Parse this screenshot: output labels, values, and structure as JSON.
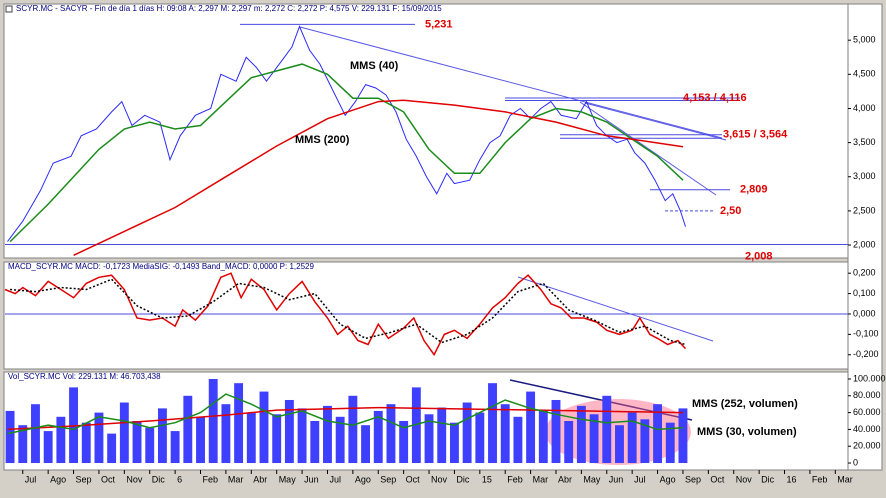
{
  "chart_data": [
    {
      "type": "line",
      "title": "SCYR.MC - SACYR - Fin de día 1 días H: 09:08 A: 2,297 M: 2,297 m: 2,272 C: 2,272 P: 4,575 V: 229.131 F: 15/09/2015",
      "xlim": [
        -0.7,
        32.5
      ],
      "ylim": [
        1.81,
        5.53
      ],
      "yticks": [
        {
          "value": 2,
          "label": "2,000"
        },
        {
          "value": 2.5,
          "label": "2,500"
        },
        {
          "value": 3,
          "label": "3,000"
        },
        {
          "value": 3.5,
          "label": "3,500"
        },
        {
          "value": 4,
          "label": "4,000"
        },
        {
          "value": 4.5,
          "label": "4,500"
        },
        {
          "value": 5,
          "label": "5,000"
        }
      ],
      "series": [
        {
          "color": "#2a2aff",
          "x": [
            -0.6,
            0,
            0.7,
            1.2,
            1.9,
            2.3,
            2.9,
            3.5,
            3.9,
            4.3,
            4.8,
            5.4,
            5.8,
            6.2,
            6.8,
            7.4,
            7.8,
            8.4,
            8.8,
            9.2,
            9.6,
            10.2,
            10.6,
            10.9,
            11.3,
            11.7,
            12.1,
            12.7,
            13.1,
            13.5,
            13.9,
            14.3,
            14.7,
            15.1,
            15.5,
            15.9,
            16.3,
            16.7,
            17.0,
            17.6,
            18.0,
            18.4,
            18.8,
            19.2,
            19.6,
            20.0,
            20.4,
            20.8,
            21.2,
            21.8,
            22.2,
            22.6,
            23.0,
            23.4,
            23.8,
            24.1,
            24.5,
            24.9,
            25.3,
            25.6,
            25.9,
            26.1
          ],
          "values": [
            2.05,
            2.35,
            2.8,
            3.2,
            3.3,
            3.6,
            3.7,
            3.95,
            4.1,
            3.75,
            3.9,
            3.8,
            3.25,
            3.6,
            3.9,
            4.0,
            4.5,
            4.4,
            4.75,
            4.6,
            4.4,
            4.7,
            4.9,
            5.2,
            4.85,
            4.65,
            4.35,
            3.9,
            4.1,
            4.35,
            4.3,
            4.2,
            3.95,
            3.55,
            3.3,
            3.0,
            2.75,
            3.05,
            2.9,
            2.95,
            3.25,
            3.5,
            3.6,
            3.9,
            4.0,
            3.85,
            4.0,
            4.1,
            3.9,
            3.85,
            4.1,
            3.75,
            3.6,
            3.5,
            3.55,
            3.35,
            3.2,
            2.95,
            2.65,
            2.75,
            2.5,
            2.27
          ]
        },
        {
          "name": "MMS (40)",
          "color": "#1a8c1a",
          "x": [
            -0.5,
            1,
            2,
            3,
            4,
            5,
            6,
            7,
            8,
            9,
            10,
            11,
            12,
            13,
            14,
            15,
            16,
            17,
            18,
            19,
            20,
            21,
            22,
            23,
            24,
            25,
            26
          ],
          "values": [
            2.05,
            2.6,
            3.0,
            3.4,
            3.7,
            3.8,
            3.7,
            3.75,
            4.1,
            4.45,
            4.55,
            4.65,
            4.5,
            4.15,
            4.15,
            3.95,
            3.4,
            3.05,
            3.05,
            3.5,
            3.85,
            4.0,
            3.95,
            3.8,
            3.55,
            3.3,
            2.95
          ]
        },
        {
          "name": "MMS (200)",
          "color": "#e00000",
          "x": [
            2,
            4,
            6,
            8,
            10,
            12,
            14,
            15,
            17,
            19,
            21,
            23,
            24,
            26
          ],
          "values": [
            1.85,
            2.2,
            2.55,
            3.0,
            3.45,
            3.85,
            4.1,
            4.12,
            4.05,
            3.95,
            3.8,
            3.6,
            3.55,
            3.44
          ]
        }
      ],
      "levels": [
        {
          "label": "5,231",
          "values": [
            5.231
          ]
        },
        {
          "label": "4,153 / 4,116",
          "values": [
            4.153,
            4.116
          ]
        },
        {
          "label": "3,615 / 3,564",
          "values": [
            3.615,
            3.564
          ]
        },
        {
          "label": "2,809",
          "values": [
            2.809
          ]
        },
        {
          "label": "2,50",
          "values": [
            2.5
          ]
        },
        {
          "label": "2,008",
          "values": [
            2.008
          ]
        }
      ]
    },
    {
      "type": "line",
      "title": "MACD_SCYR.MC MACD: -0,1723 MediaSIG: -0,1493 Band_MACD: 0,0000 P: 1,2529",
      "xlim": [
        -0.7,
        32.5
      ],
      "ylim": [
        -0.27,
        0.255
      ],
      "yticks": [
        {
          "value": 0.2,
          "label": "0,200"
        },
        {
          "value": 0.1,
          "label": "0,100"
        },
        {
          "value": 0,
          "label": "0,000"
        },
        {
          "value": -0.1,
          "label": "-0,100"
        },
        {
          "value": -0.2,
          "label": "-0,200"
        }
      ],
      "series": [
        {
          "color": "#e00000",
          "x": [
            -0.7,
            -0.3,
            0,
            0.5,
            1,
            1.5,
            2,
            2.5,
            3,
            3.5,
            4,
            4.5,
            5,
            5.5,
            6,
            6.3,
            6.8,
            7.3,
            7.8,
            8.2,
            8.6,
            9,
            9.5,
            10,
            10.5,
            11,
            11.5,
            12,
            12.4,
            12.8,
            13.2,
            13.6,
            14,
            14.4,
            15,
            15.4,
            15.8,
            16.2,
            16.6,
            17,
            17.5,
            18,
            18.5,
            19,
            19.5,
            19.9,
            20.4,
            20.8,
            21.2,
            21.6,
            22.1,
            22.6,
            23,
            23.5,
            24,
            24.3,
            24.7,
            25,
            25.4,
            25.8,
            26.1
          ],
          "values": [
            0.12,
            0.1,
            0.13,
            0.09,
            0.16,
            0.12,
            0.08,
            0.15,
            0.18,
            0.19,
            0.12,
            -0.02,
            -0.03,
            -0.02,
            -0.06,
            0.02,
            -0.03,
            0.04,
            0.18,
            0.2,
            0.08,
            0.17,
            0.12,
            0.02,
            0.1,
            0.16,
            0.06,
            -0.02,
            -0.1,
            -0.06,
            -0.13,
            -0.15,
            -0.05,
            -0.12,
            -0.07,
            -0.02,
            -0.13,
            -0.2,
            -0.1,
            -0.08,
            -0.12,
            -0.05,
            0.03,
            0.08,
            0.15,
            0.19,
            0.12,
            0.05,
            0.03,
            -0.02,
            -0.02,
            -0.04,
            -0.08,
            -0.1,
            -0.08,
            -0.02,
            -0.1,
            -0.12,
            -0.15,
            -0.13,
            -0.17
          ]
        },
        {
          "color": "#000000",
          "dashed": true,
          "x": [
            -0.5,
            0.5,
            1.5,
            2.5,
            3.5,
            4.5,
            5.5,
            6.5,
            7.5,
            8.5,
            9.5,
            10.5,
            11.5,
            12.5,
            13.5,
            14.5,
            15.5,
            16.5,
            17.5,
            18.5,
            19.5,
            20.5,
            21.5,
            22.5,
            23.5,
            24.5,
            25.5,
            26.1
          ],
          "values": [
            0.12,
            0.11,
            0.13,
            0.12,
            0.17,
            0.04,
            -0.02,
            -0.01,
            0.06,
            0.15,
            0.13,
            0.07,
            0.1,
            -0.05,
            -0.12,
            -0.09,
            -0.05,
            -0.14,
            -0.1,
            -0.02,
            0.11,
            0.15,
            0.02,
            -0.03,
            -0.09,
            -0.06,
            -0.13,
            -0.15
          ]
        }
      ]
    },
    {
      "type": "bar",
      "title": "Vol_SCYR.MC Vol: 229.131 M: 46.703,438",
      "xlim": [
        -0.7,
        32.5
      ],
      "ylim": [
        -8300,
        108300
      ],
      "yticks": [
        {
          "value": 100000,
          "label": "100.000"
        },
        {
          "value": 80000,
          "label": "80.000"
        },
        {
          "value": 60000,
          "label": "60.000"
        },
        {
          "value": 40000,
          "label": "40.000"
        },
        {
          "value": 20000,
          "label": "20.000"
        },
        0
      ],
      "xticks": [
        {
          "value": 0,
          "label": "Jul"
        },
        {
          "value": 1,
          "label": "Ago"
        },
        {
          "value": 2,
          "label": "Sep"
        },
        {
          "value": 3,
          "label": "Oct"
        },
        {
          "value": 4,
          "label": "Nov"
        },
        {
          "value": 5,
          "label": "Dic"
        },
        6,
        {
          "value": 7,
          "label": "Feb"
        },
        {
          "value": 8,
          "label": "Mar"
        },
        {
          "value": 9,
          "label": "Abr"
        },
        {
          "value": 10,
          "label": "May"
        },
        {
          "value": 11,
          "label": "Jun"
        },
        {
          "value": 12,
          "label": "Jul"
        },
        {
          "value": 13,
          "label": "Ago"
        },
        {
          "value": 14,
          "label": "Sep"
        },
        {
          "value": 15,
          "label": "Oct"
        },
        {
          "value": 16,
          "label": "Nov"
        },
        {
          "value": 17,
          "label": "Dic"
        },
        {
          "value": 18,
          "label": "15"
        },
        {
          "value": 19,
          "label": "Feb"
        },
        {
          "value": 20,
          "label": "Mar"
        },
        {
          "value": 21,
          "label": "Abr"
        },
        {
          "value": 22,
          "label": "May"
        },
        {
          "value": 23,
          "label": "Jun"
        },
        {
          "value": 24,
          "label": "Jul"
        },
        {
          "value": 25,
          "label": "Ago"
        },
        {
          "value": 26,
          "label": "Sep"
        },
        {
          "value": 27,
          "label": "Oct"
        },
        {
          "value": 28,
          "label": "Nov"
        },
        {
          "value": 29,
          "label": "Dic"
        },
        {
          "value": 30,
          "label": "16"
        },
        {
          "value": 31,
          "label": "Feb"
        },
        {
          "value": 32,
          "label": "Mar"
        }
      ],
      "x": [
        -0.5,
        0,
        0.5,
        1,
        1.5,
        2,
        2.5,
        3,
        3.5,
        4,
        4.5,
        5,
        5.5,
        6,
        6.5,
        7,
        7.5,
        8,
        8.5,
        9,
        9.5,
        10,
        10.5,
        11,
        11.5,
        12,
        12.5,
        13,
        13.5,
        14,
        14.5,
        15,
        15.5,
        16,
        16.5,
        17,
        17.5,
        18,
        18.5,
        19,
        19.5,
        20,
        20.5,
        21,
        21.5,
        22,
        22.5,
        23,
        23.5,
        24,
        24.5,
        25,
        25.5,
        26
      ],
      "values": [
        62000,
        45000,
        70000,
        38000,
        55000,
        90000,
        48000,
        60000,
        35000,
        72000,
        50000,
        42000,
        65000,
        38000,
        80000,
        55000,
        100000,
        70000,
        95000,
        60000,
        85000,
        58000,
        75000,
        65000,
        50000,
        68000,
        55000,
        80000,
        45000,
        62000,
        70000,
        50000,
        90000,
        58000,
        66000,
        48000,
        72000,
        60000,
        95000,
        70000,
        55000,
        85000,
        62000,
        75000,
        50000,
        68000,
        58000,
        80000,
        45000,
        60000,
        52000,
        70000,
        48000,
        65000
      ],
      "color": "#3f3fff",
      "series": [
        {
          "name": "MMS (252, volumen)",
          "color": "#e00000",
          "x": [
            -0.6,
            2,
            5,
            8,
            10,
            14,
            18,
            22,
            26
          ],
          "values": [
            40000,
            44000,
            50000,
            57000,
            63000,
            66000,
            64000,
            62000,
            60000
          ]
        },
        {
          "name": "MMS (30, volumen)",
          "color": "#1a8c1a",
          "x": [
            -0.6,
            1,
            2,
            3,
            4,
            5,
            6,
            7,
            8,
            9,
            10,
            11,
            12,
            13,
            14,
            15,
            16,
            17,
            18,
            19,
            20,
            21,
            22,
            23,
            24,
            25,
            26
          ],
          "values": [
            35000,
            45000,
            40000,
            55000,
            50000,
            42000,
            48000,
            60000,
            82000,
            70000,
            55000,
            62000,
            50000,
            45000,
            55000,
            42000,
            50000,
            45000,
            60000,
            75000,
            65000,
            58000,
            52000,
            48000,
            50000,
            40000,
            42000
          ]
        }
      ]
    }
  ]
}
